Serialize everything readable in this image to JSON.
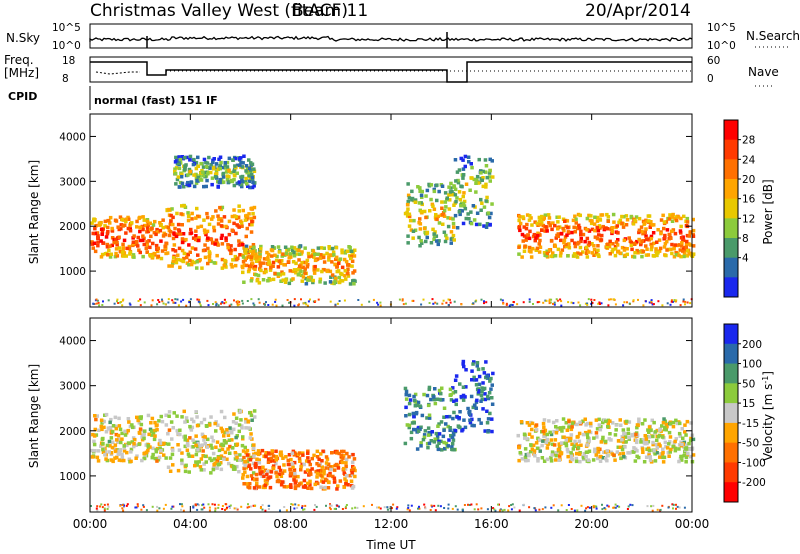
{
  "header": {
    "title": "Christmas Valley West (fitACF)",
    "beam": "Beam 11",
    "date": "20/Apr/2014"
  },
  "top_panels": {
    "nsky_label": "N.Sky",
    "nsky_ticks": [
      "10^5",
      "10^0"
    ],
    "nsearch_label": "N.Search",
    "nsearch_ticks": [
      "10^5",
      "10^0"
    ],
    "freq_label": [
      "Freq.",
      "[MHz]"
    ],
    "freq_ticks": [
      "18",
      "8"
    ],
    "nave_label": "Nave",
    "nave_ticks": [
      "60",
      "0"
    ],
    "cpid_label": "CPID",
    "cpid_text": "normal (fast) 151 IF"
  },
  "chart_data": [
    {
      "type": "heatmap",
      "name": "power",
      "ylabel": "Slant Range [km]",
      "yticks": [
        "4000",
        "3000",
        "2000",
        "1000"
      ],
      "ytick_values": [
        4000,
        3000,
        2000,
        1000
      ],
      "ylim": [
        200,
        4500
      ],
      "xlim": [
        0,
        24
      ],
      "colorbar_label": "Power [dB]",
      "colorbar_ticks": [
        "28",
        "24",
        "20",
        "16",
        "12",
        "8",
        "4"
      ],
      "colorbar_colors": [
        "#ff0000",
        "#ff3a00",
        "#ff7000",
        "#ffa500",
        "#e8c800",
        "#8ccb3c",
        "#4a9a6a",
        "#2a6aaa",
        "#1a28ee"
      ],
      "regions": [
        {
          "t0": 0.0,
          "t1": 2.3,
          "r0": 1350,
          "r1": 2250,
          "level": 0.9
        },
        {
          "t0": 2.3,
          "t1": 3.0,
          "r0": 1300,
          "r1": 2200,
          "level": 0.85
        },
        {
          "t0": 3.0,
          "t1": 6.5,
          "r0": 1100,
          "r1": 2500,
          "level": 0.85
        },
        {
          "t0": 6.0,
          "t1": 10.5,
          "r0": 750,
          "r1": 1600,
          "level": 0.7
        },
        {
          "t0": 3.3,
          "t1": 6.5,
          "r0": 2900,
          "r1": 3600,
          "level": 0.45
        },
        {
          "t0": 12.5,
          "t1": 14.5,
          "r0": 1600,
          "r1": 3000,
          "level": 0.6
        },
        {
          "t0": 14.5,
          "t1": 16.0,
          "r0": 2000,
          "r1": 3600,
          "level": 0.5
        },
        {
          "t0": 17.0,
          "t1": 24.0,
          "r0": 1350,
          "r1": 2300,
          "level": 0.85
        }
      ]
    },
    {
      "type": "heatmap",
      "name": "velocity",
      "ylabel": "Slant Range [km]",
      "yticks": [
        "4000",
        "3000",
        "2000",
        "1000"
      ],
      "ytick_values": [
        4000,
        3000,
        2000,
        1000
      ],
      "ylim": [
        200,
        4500
      ],
      "xlim": [
        0,
        24
      ],
      "xlabel": "Time UT",
      "xticks": [
        "00:00",
        "04:00",
        "08:00",
        "12:00",
        "16:00",
        "20:00",
        "00:00"
      ],
      "xtick_values": [
        0,
        4,
        8,
        12,
        16,
        20,
        24
      ],
      "colorbar_label": "Velocity [m s",
      "colorbar_label_sup": "-1",
      "colorbar_label_end": "]",
      "colorbar_ticks": [
        "200",
        "100",
        "50",
        "15",
        "-15",
        "-50",
        "-100",
        "-200"
      ],
      "colorbar_colors": [
        "#1a28ee",
        "#2a6aaa",
        "#4a9a6a",
        "#8ccb3c",
        "#c8c8c8",
        "#ffa500",
        "#ff7000",
        "#ff3a00",
        "#ff0000"
      ],
      "regions": [
        {
          "t0": 0.0,
          "t1": 3.0,
          "r0": 1350,
          "r1": 2400,
          "level": 0.5
        },
        {
          "t0": 3.0,
          "t1": 6.5,
          "r0": 1100,
          "r1": 2500,
          "level": 0.5
        },
        {
          "t0": 6.0,
          "t1": 10.5,
          "r0": 750,
          "r1": 1600,
          "level": 0.3
        },
        {
          "t0": 12.5,
          "t1": 14.5,
          "r0": 1600,
          "r1": 3000,
          "level": 0.75
        },
        {
          "t0": 14.5,
          "t1": 16.0,
          "r0": 2000,
          "r1": 3600,
          "level": 0.85
        },
        {
          "t0": 17.0,
          "t1": 24.0,
          "r0": 1350,
          "r1": 2300,
          "level": 0.5
        }
      ]
    }
  ]
}
